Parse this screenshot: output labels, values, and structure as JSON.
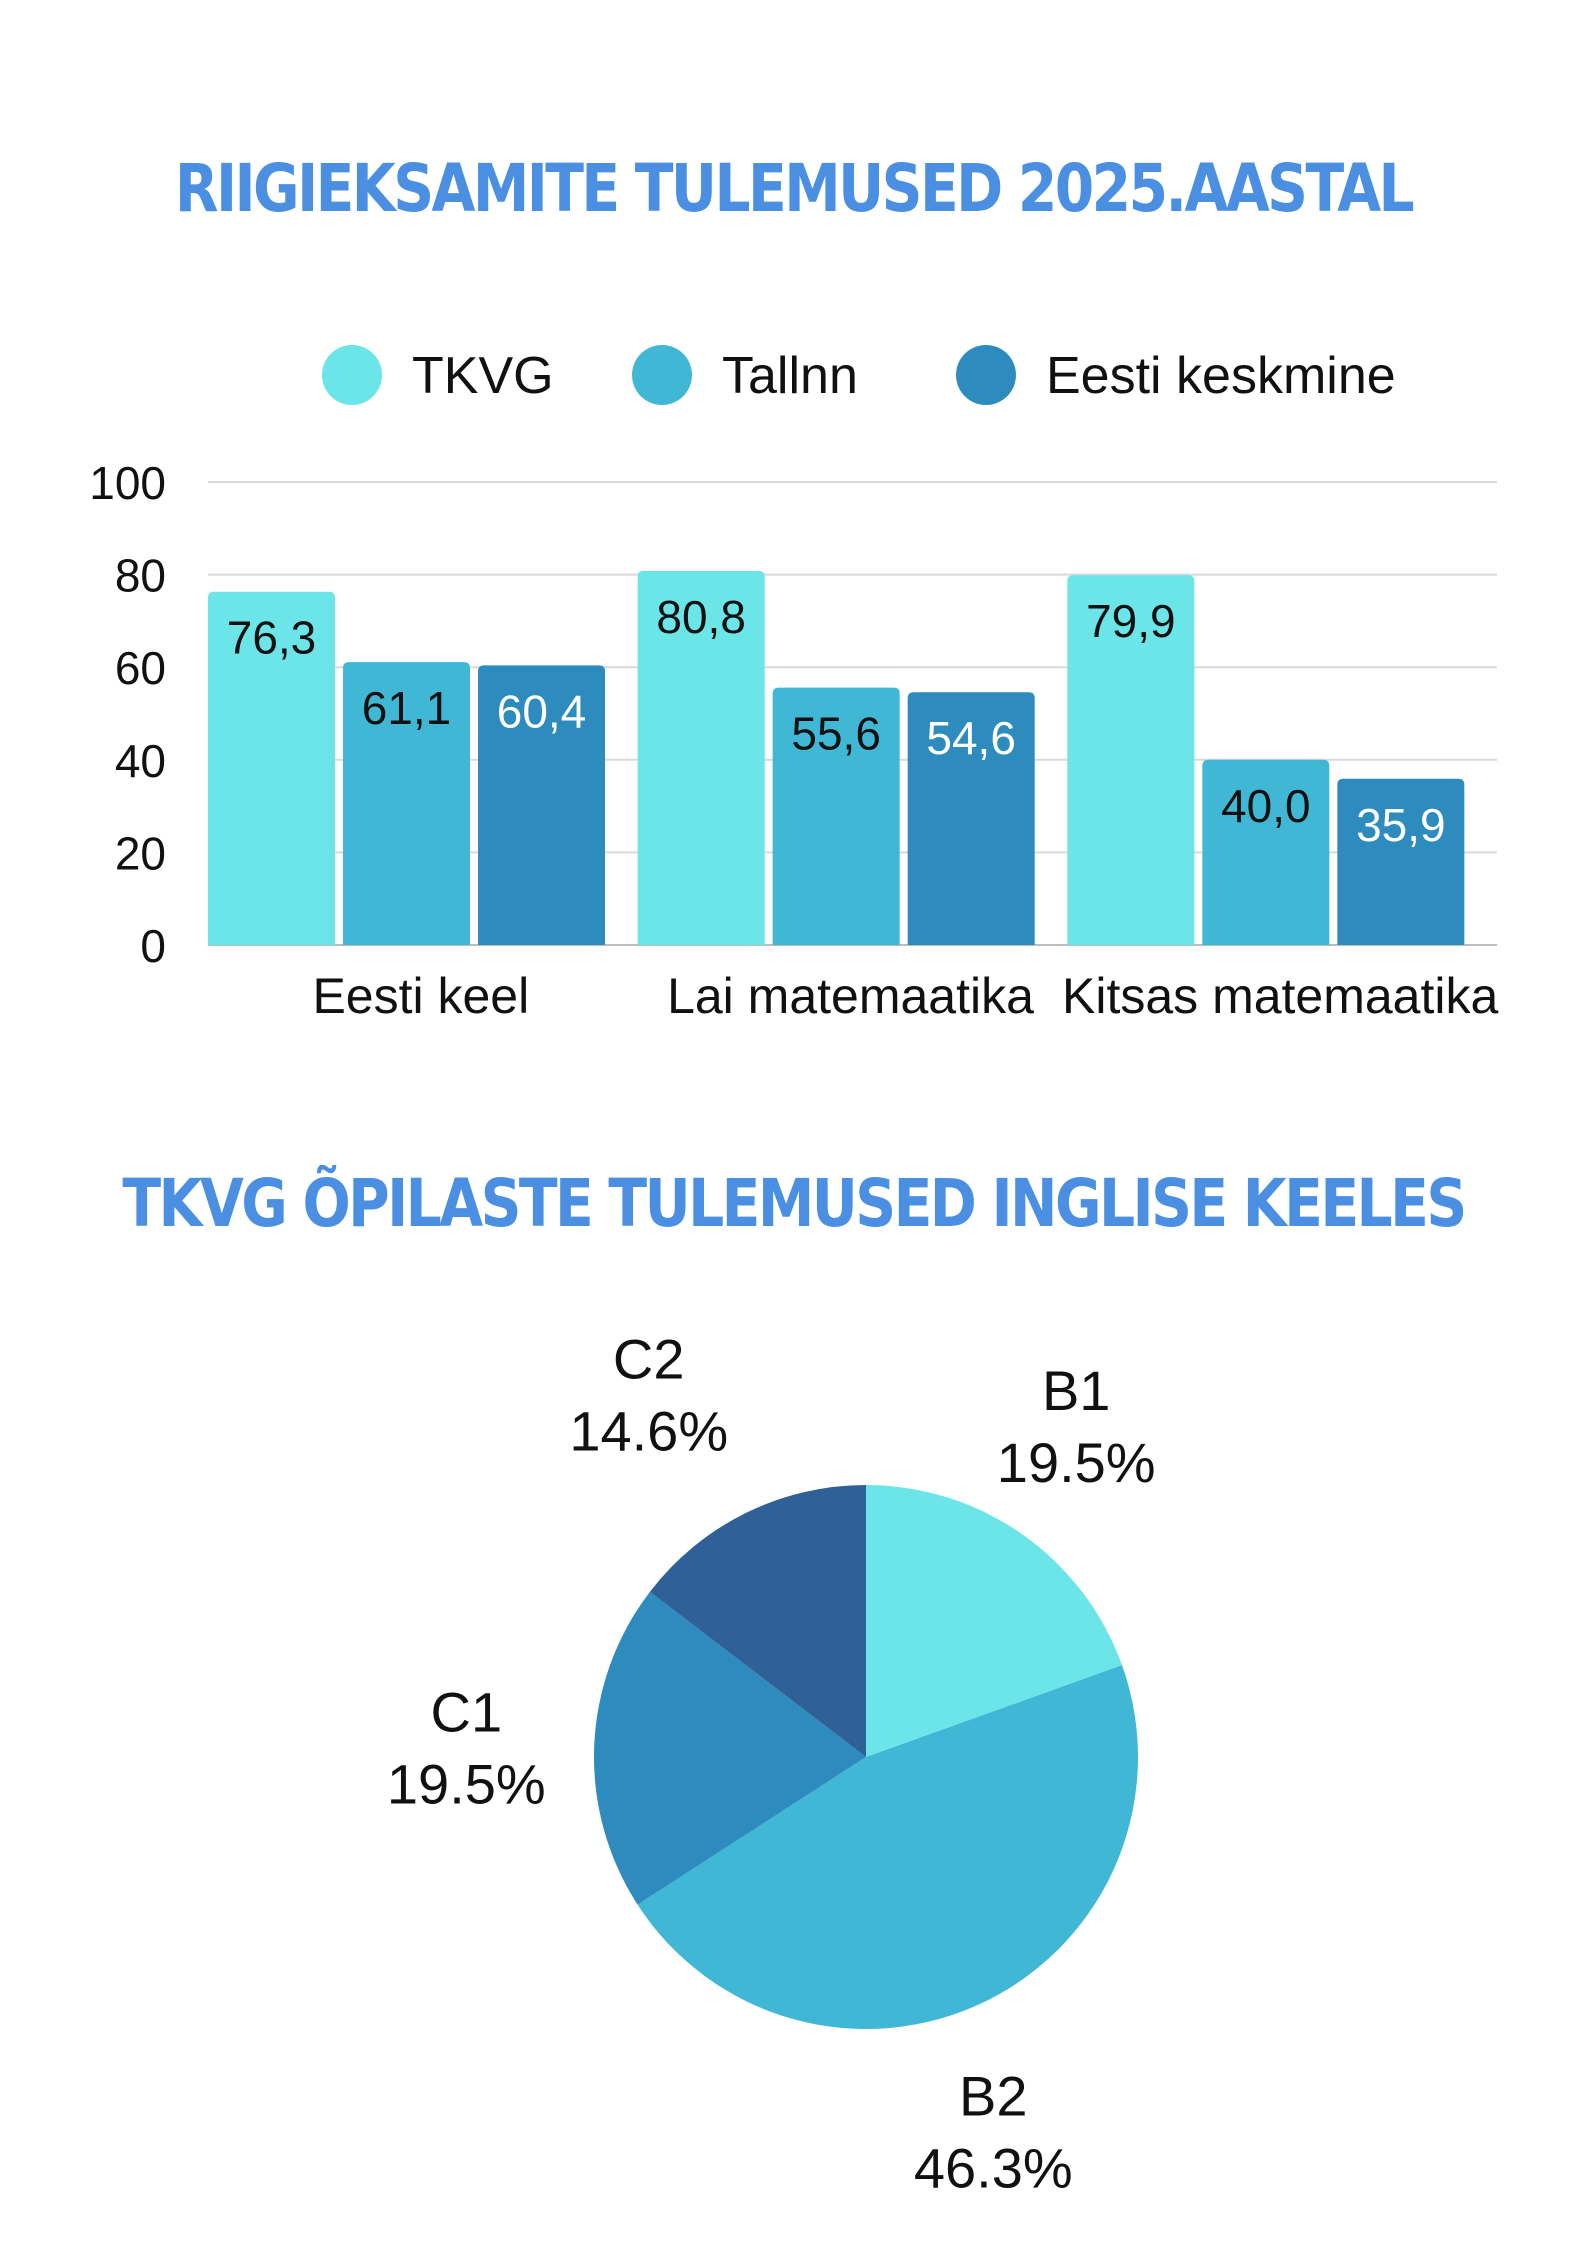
{
  "bar_chart": {
    "title": "RIIGIEKSAMITE TULEMUSED 2025.AASTAL"
  },
  "pie_chart": {
    "title": "TKVG ÕPILASTE TULEMUSED INGLISE KEELES"
  },
  "chart_data": [
    {
      "type": "bar",
      "title": "RIIGIEKSAMITE TULEMUSED 2025.AASTAL",
      "categories": [
        "Eesti keel",
        "Lai matemaatika",
        "Kitsas matemaatika"
      ],
      "series": [
        {
          "name": "TKVG",
          "values": [
            76.3,
            80.8,
            79.9
          ],
          "labels": [
            "76,3",
            "80,8",
            "79,9"
          ],
          "color": "#6ce5e8",
          "label_color": "#111111"
        },
        {
          "name": "Tallnn",
          "values": [
            61.1,
            55.6,
            40.0
          ],
          "labels": [
            "61,1",
            "55,6",
            "40,0"
          ],
          "color": "#41b7d6",
          "label_color": "#111111"
        },
        {
          "name": "Eesti keskmine",
          "values": [
            60.4,
            54.6,
            35.9
          ],
          "labels": [
            "60,4",
            "54,6",
            "35,9"
          ],
          "color": "#2e8bbd",
          "label_color": "#ffffff"
        }
      ],
      "yticks": [
        "0",
        "20",
        "40",
        "60",
        "80",
        "100"
      ],
      "ylim": [
        0,
        100
      ],
      "grid": true,
      "legend": "top-center",
      "xlabel": "",
      "ylabel": ""
    },
    {
      "type": "pie",
      "title": "TKVG ÕPILASTE TULEMUSED INGLISE KEELES",
      "slices": [
        {
          "label": "B1",
          "value": 19.5,
          "pct_label": "19.5%",
          "color": "#6ce5e8"
        },
        {
          "label": "B2",
          "value": 46.3,
          "pct_label": "46.3%",
          "color": "#41b7d6"
        },
        {
          "label": "C1",
          "value": 19.5,
          "pct_label": "19.5%",
          "color": "#2e8bbd"
        },
        {
          "label": "C2",
          "value": 14.6,
          "pct_label": "14.6%",
          "color": "#2f6097"
        }
      ],
      "start": "12 o'clock",
      "direction": "clockwise"
    }
  ]
}
